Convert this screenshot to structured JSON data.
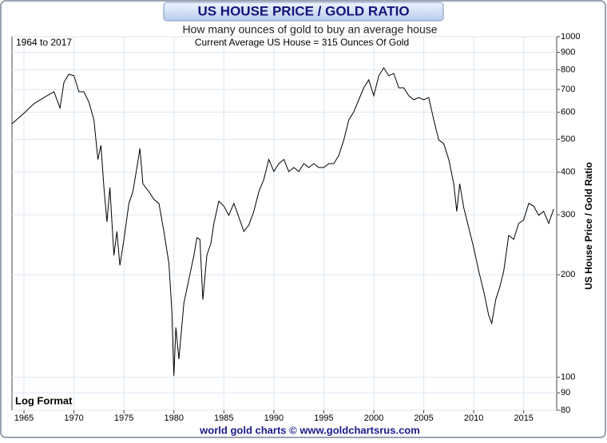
{
  "chart_data": {
    "type": "line",
    "title": "US HOUSE PRICE / GOLD RATIO",
    "subtitle": "How many ounces of gold to buy an average house",
    "range_note": "1964 to 2017",
    "note": "Current Average US House = 315 Ounces Of Gold",
    "scale_note": "Log Format",
    "y_label": "US House Price / Gold Ratio",
    "footer": "world gold charts © www.goldchartsrus.com",
    "log_scale": true,
    "grid": true,
    "xlim": [
      1963.8,
      2018.3
    ],
    "ylim": [
      80,
      1000
    ],
    "xticks": [
      1965,
      1970,
      1975,
      1980,
      1985,
      1990,
      1995,
      2000,
      2005,
      2010,
      2015
    ],
    "yticks": [
      80,
      90,
      100,
      200,
      300,
      400,
      500,
      600,
      700,
      800,
      900,
      1000
    ],
    "series": [
      {
        "name": "US House Price / Gold Ratio",
        "color": "#000000",
        "x": [
          1963.8,
          1965,
          1966,
          1967,
          1968,
          1968.6,
          1969,
          1969.5,
          1970,
          1970.5,
          1971,
          1971.5,
          1972,
          1972.4,
          1972.7,
          1973,
          1973.3,
          1973.6,
          1974,
          1974.3,
          1974.6,
          1975,
          1975.5,
          1975.9,
          1976.3,
          1976.6,
          1976.9,
          1977.5,
          1978,
          1978.5,
          1979,
          1979.5,
          1979.8,
          1980,
          1980.2,
          1980.5,
          1981,
          1981.5,
          1982,
          1982.3,
          1982.6,
          1982.9,
          1983.3,
          1983.7,
          1984,
          1984.5,
          1985,
          1985.5,
          1986,
          1986.5,
          1987,
          1987.5,
          1988,
          1988.5,
          1989,
          1989.5,
          1990,
          1990.5,
          1991,
          1991.5,
          1992,
          1992.5,
          1993,
          1993.5,
          1994,
          1994.5,
          1995,
          1995.5,
          1996,
          1996.5,
          1997,
          1997.5,
          1998,
          1998.5,
          1999,
          1999.5,
          2000,
          2000.5,
          2001,
          2001.5,
          2002,
          2002.5,
          2003,
          2003.5,
          2004,
          2004.5,
          2005,
          2005.5,
          2006,
          2006.5,
          2007,
          2007.5,
          2008,
          2008.3,
          2008.6,
          2009,
          2009.5,
          2010,
          2010.5,
          2011,
          2011.5,
          2011.8,
          2012.2,
          2012.6,
          2013,
          2013.5,
          2014,
          2014.5,
          2015,
          2015.5,
          2016,
          2016.5,
          2017,
          2017.5,
          2018
        ],
        "values": [
          555,
          596,
          636,
          663,
          689,
          618,
          735,
          776,
          768,
          689,
          689,
          642,
          570,
          436,
          480,
          361,
          286,
          361,
          228,
          268,
          213,
          254,
          324,
          351,
          413,
          470,
          370,
          351,
          333,
          324,
          268,
          216,
          156,
          101,
          140,
          113,
          165,
          194,
          228,
          257,
          254,
          169,
          228,
          247,
          283,
          329,
          318,
          299,
          324,
          295,
          268,
          280,
          307,
          351,
          381,
          436,
          402,
          424,
          436,
          402,
          413,
          402,
          424,
          413,
          424,
          413,
          413,
          424,
          424,
          448,
          498,
          570,
          602,
          653,
          708,
          747,
          671,
          768,
          810,
          768,
          780,
          708,
          708,
          671,
          653,
          663,
          653,
          663,
          570,
          498,
          485,
          436,
          370,
          307,
          370,
          315,
          275,
          240,
          205,
          179,
          152,
          144,
          169,
          184,
          205,
          261,
          254,
          283,
          290,
          324,
          318,
          299,
          307,
          283,
          312
        ]
      }
    ]
  }
}
